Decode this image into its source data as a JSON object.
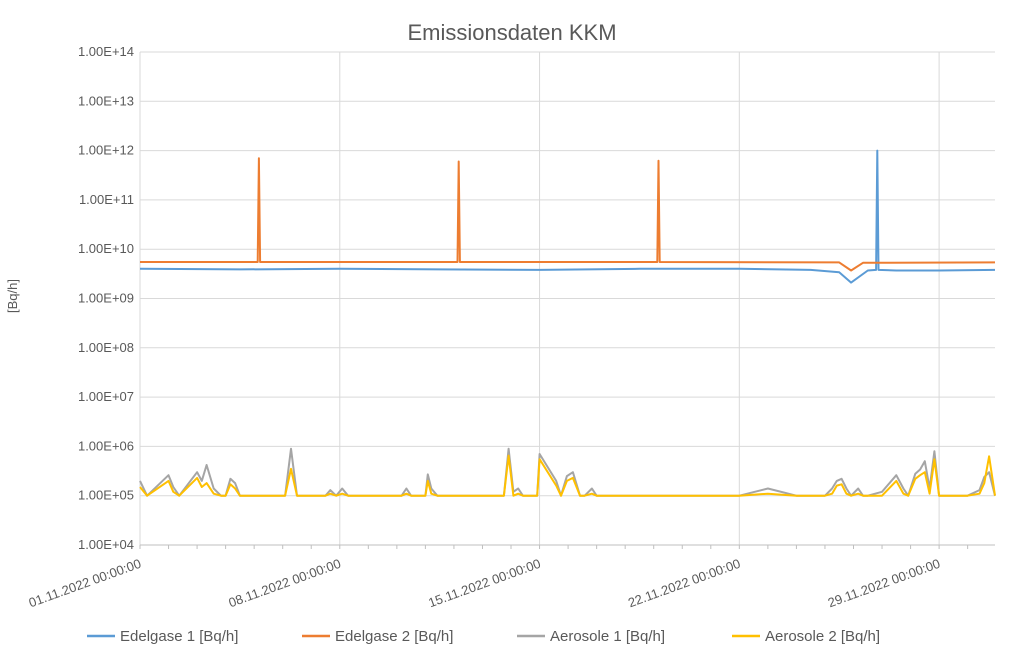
{
  "chart_data": {
    "type": "line",
    "title": "Emissionsdaten KKM",
    "xlabel": "",
    "ylabel": "[Bq/h]",
    "y_scale": "log",
    "ylim": [
      10000,
      100000000000000
    ],
    "y_ticks": [
      "1.00E+04",
      "1.00E+05",
      "1.00E+06",
      "1.00E+07",
      "1.00E+08",
      "1.00E+09",
      "1.00E+10",
      "1.00E+11",
      "1.00E+12",
      "1.00E+13",
      "1.00E+14"
    ],
    "xlim": [
      "2022-11-01 00:00:00",
      "2022-11-30 23:00:00"
    ],
    "x_ticks": [
      "01.11.2022 00:00:00",
      "08.11.2022 00:00:00",
      "15.11.2022 00:00:00",
      "22.11.2022 00:00:00",
      "29.11.2022 00:00:00"
    ],
    "grid": true,
    "legend": "bottom",
    "series": [
      {
        "name": "Edelgase 1 [Bq/h]",
        "color": "#5b9bd5",
        "x": [
          "2022-11-01 00:00",
          "2022-11-04 12:00",
          "2022-11-08 00:00",
          "2022-11-11 12:00",
          "2022-11-15 00:00",
          "2022-11-18 12:00",
          "2022-11-22 00:00",
          "2022-11-24 12:00",
          "2022-11-25 12:00",
          "2022-11-25 22:00",
          "2022-11-26 12:00",
          "2022-11-26 19:00",
          "2022-11-26 20:00",
          "2022-11-26 21:00",
          "2022-11-27 12:00",
          "2022-11-29 00:00",
          "2022-11-30 23:00"
        ],
        "y": [
          4000000000,
          3900000000,
          4000000000,
          3900000000,
          3800000000,
          4000000000,
          4000000000,
          3800000000,
          3400000000,
          2100000000,
          3700000000,
          3800000000,
          1000000000000,
          3800000000,
          3700000000,
          3700000000,
          3800000000
        ]
      },
      {
        "name": "Edelgase 2 [Bq/h]",
        "color": "#ed7d31",
        "x": [
          "2022-11-01 00:00",
          "2022-11-05 03:00",
          "2022-11-05 04:00",
          "2022-11-05 05:00",
          "2022-11-12 03:00",
          "2022-11-12 04:00",
          "2022-11-12 05:00",
          "2022-11-19 03:00",
          "2022-11-19 04:00",
          "2022-11-19 05:00",
          "2022-11-25 12:00",
          "2022-11-25 22:00",
          "2022-11-26 08:00",
          "2022-11-30 23:00"
        ],
        "y": [
          5500000000,
          5500000000,
          700000000000,
          5500000000,
          5500000000,
          600000000000,
          5500000000,
          5500000000,
          620000000000,
          5500000000,
          5400000000,
          3700000000,
          5300000000,
          5400000000
        ]
      },
      {
        "name": "Aerosole 1 [Bq/h]",
        "color": "#a5a5a5",
        "x": [
          "2022-11-01 00:00",
          "2022-11-01 06:00",
          "2022-11-02 00:00",
          "2022-11-02 04:00",
          "2022-11-02 09:00",
          "2022-11-03 00:00",
          "2022-11-03 04:00",
          "2022-11-03 08:00",
          "2022-11-03 14:00",
          "2022-11-03 20:00",
          "2022-11-04 00:00",
          "2022-11-04 04:00",
          "2022-11-04 08:00",
          "2022-11-04 12:00",
          "2022-11-05 00:00",
          "2022-11-05 22:00",
          "2022-11-06 02:00",
          "2022-11-06 07:00",
          "2022-11-06 12:00",
          "2022-11-07 12:00",
          "2022-11-07 16:00",
          "2022-11-07 21:00",
          "2022-11-08 02:00",
          "2022-11-08 07:00",
          "2022-11-08 12:00",
          "2022-11-09 00:00",
          "2022-11-10 04:00",
          "2022-11-10 08:00",
          "2022-11-10 12:00",
          "2022-11-11 00:00",
          "2022-11-11 02:00",
          "2022-11-11 05:00",
          "2022-11-11 10:00",
          "2022-11-12 00:00",
          "2022-11-13 18:00",
          "2022-11-13 22:00",
          "2022-11-14 02:00",
          "2022-11-14 06:00",
          "2022-11-14 10:00",
          "2022-11-14 16:00",
          "2022-11-14 22:00",
          "2022-11-15 00:00",
          "2022-11-15 14:00",
          "2022-11-15 18:00",
          "2022-11-15 23:00",
          "2022-11-16 04:00",
          "2022-11-16 10:00",
          "2022-11-16 14:00",
          "2022-11-16 20:00",
          "2022-11-17 00:00",
          "2022-11-18 00:00",
          "2022-11-19 00:00",
          "2022-11-20 00:00",
          "2022-11-21 00:00",
          "2022-11-22 00:00",
          "2022-11-23 00:00",
          "2022-11-24 00:00",
          "2022-11-25 00:00",
          "2022-11-25 06:00",
          "2022-11-25 10:00",
          "2022-11-25 14:00",
          "2022-11-25 18:00",
          "2022-11-25 22:00",
          "2022-11-26 04:00",
          "2022-11-26 08:00",
          "2022-11-26 12:00",
          "2022-11-27 00:00",
          "2022-11-27 12:00",
          "2022-11-27 18:00",
          "2022-11-27 22:00",
          "2022-11-28 04:00",
          "2022-11-28 08:00",
          "2022-11-28 12:00",
          "2022-11-28 16:00",
          "2022-11-28 20:00",
          "2022-11-29 00:00",
          "2022-11-30 00:00",
          "2022-11-30 10:00",
          "2022-11-30 14:00",
          "2022-11-30 18:00",
          "2022-11-30 23:00"
        ],
        "y": [
          200000,
          100000,
          260000,
          150000,
          100000,
          300000,
          200000,
          420000,
          140000,
          100000,
          100000,
          220000,
          180000,
          100000,
          100000,
          100000,
          100000,
          900000,
          100000,
          100000,
          130000,
          100000,
          140000,
          100000,
          100000,
          100000,
          100000,
          140000,
          100000,
          100000,
          270000,
          140000,
          100000,
          100000,
          100000,
          900000,
          120000,
          140000,
          100000,
          100000,
          100000,
          700000,
          200000,
          100000,
          250000,
          300000,
          100000,
          100000,
          140000,
          100000,
          100000,
          100000,
          100000,
          100000,
          100000,
          140000,
          100000,
          100000,
          140000,
          200000,
          220000,
          140000,
          100000,
          140000,
          100000,
          100000,
          120000,
          260000,
          140000,
          100000,
          280000,
          340000,
          500000,
          140000,
          800000,
          100000,
          100000,
          130000,
          240000,
          300000,
          100000
        ],
        "note_hidden": null
      },
      {
        "name": "Aerosole 2 [Bq/h]",
        "color": "#ffc000",
        "x": [
          "2022-11-01 00:00",
          "2022-11-01 06:00",
          "2022-11-02 00:00",
          "2022-11-02 04:00",
          "2022-11-02 09:00",
          "2022-11-03 00:00",
          "2022-11-03 04:00",
          "2022-11-03 08:00",
          "2022-11-03 14:00",
          "2022-11-03 20:00",
          "2022-11-04 00:00",
          "2022-11-04 04:00",
          "2022-11-04 08:00",
          "2022-11-04 12:00",
          "2022-11-05 00:00",
          "2022-11-05 22:00",
          "2022-11-06 02:00",
          "2022-11-06 07:00",
          "2022-11-06 12:00",
          "2022-11-07 12:00",
          "2022-11-07 16:00",
          "2022-11-07 21:00",
          "2022-11-08 02:00",
          "2022-11-08 07:00",
          "2022-11-08 12:00",
          "2022-11-09 00:00",
          "2022-11-10 04:00",
          "2022-11-10 08:00",
          "2022-11-10 12:00",
          "2022-11-11 00:00",
          "2022-11-11 02:00",
          "2022-11-11 05:00",
          "2022-11-11 10:00",
          "2022-11-12 00:00",
          "2022-11-13 18:00",
          "2022-11-13 22:00",
          "2022-11-14 02:00",
          "2022-11-14 06:00",
          "2022-11-14 10:00",
          "2022-11-14 16:00",
          "2022-11-14 22:00",
          "2022-11-15 00:00",
          "2022-11-15 14:00",
          "2022-11-15 18:00",
          "2022-11-15 23:00",
          "2022-11-16 04:00",
          "2022-11-16 10:00",
          "2022-11-16 14:00",
          "2022-11-16 20:00",
          "2022-11-17 00:00",
          "2022-11-18 00:00",
          "2022-11-19 00:00",
          "2022-11-20 00:00",
          "2022-11-21 00:00",
          "2022-11-22 00:00",
          "2022-11-23 00:00",
          "2022-11-24 00:00",
          "2022-11-25 00:00",
          "2022-11-25 06:00",
          "2022-11-25 10:00",
          "2022-11-25 14:00",
          "2022-11-25 18:00",
          "2022-11-25 22:00",
          "2022-11-26 04:00",
          "2022-11-26 08:00",
          "2022-11-26 12:00",
          "2022-11-27 00:00",
          "2022-11-27 12:00",
          "2022-11-27 18:00",
          "2022-11-27 22:00",
          "2022-11-28 04:00",
          "2022-11-28 08:00",
          "2022-11-28 12:00",
          "2022-11-28 16:00",
          "2022-11-28 20:00",
          "2022-11-29 00:00",
          "2022-11-30 00:00",
          "2022-11-30 10:00",
          "2022-11-30 14:00",
          "2022-11-30 18:00",
          "2022-11-30 23:00"
        ],
        "y": [
          150000,
          100000,
          200000,
          120000,
          100000,
          230000,
          150000,
          180000,
          110000,
          100000,
          100000,
          170000,
          140000,
          100000,
          100000,
          100000,
          100000,
          350000,
          100000,
          100000,
          110000,
          100000,
          110000,
          100000,
          100000,
          100000,
          100000,
          110000,
          100000,
          100000,
          200000,
          110000,
          100000,
          100000,
          100000,
          650000,
          100000,
          110000,
          100000,
          100000,
          100000,
          550000,
          160000,
          100000,
          200000,
          230000,
          100000,
          100000,
          110000,
          100000,
          100000,
          100000,
          100000,
          100000,
          100000,
          110000,
          100000,
          100000,
          110000,
          160000,
          170000,
          110000,
          100000,
          110000,
          100000,
          100000,
          100000,
          200000,
          110000,
          100000,
          220000,
          260000,
          300000,
          110000,
          550000,
          100000,
          100000,
          110000,
          180000,
          630000,
          100000
        ]
      }
    ]
  }
}
